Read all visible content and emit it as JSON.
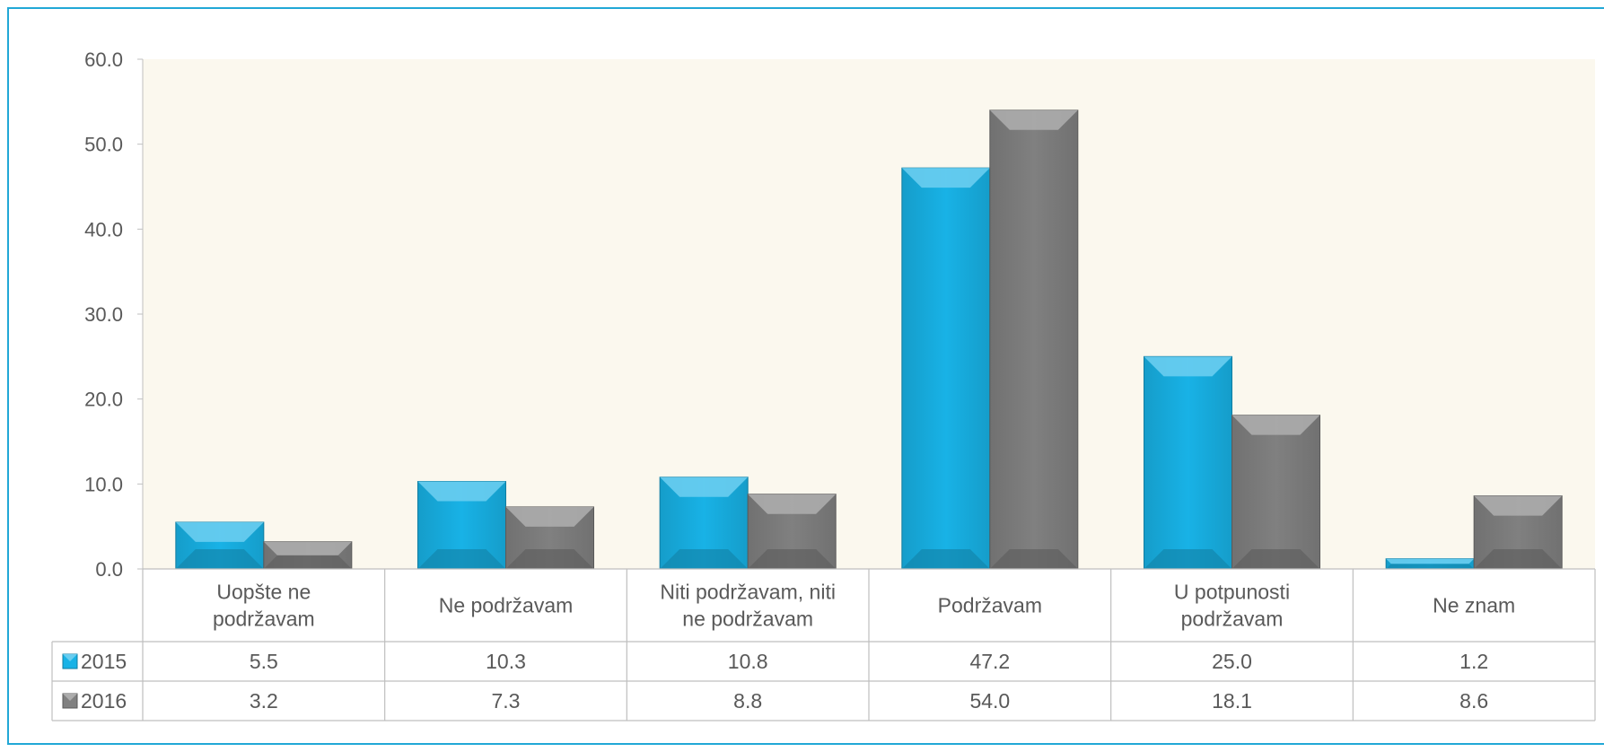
{
  "chart_data": {
    "type": "bar",
    "categories": [
      [
        "Uopšte ne",
        "podržavam"
      ],
      [
        "Ne podržavam"
      ],
      [
        "Niti podržavam, niti",
        "ne podržavam"
      ],
      [
        "Podržavam"
      ],
      [
        "U potpunosti",
        "podržavam"
      ],
      [
        "Ne znam"
      ]
    ],
    "series": [
      {
        "name": "2015",
        "values": [
          5.5,
          10.3,
          10.8,
          47.2,
          25.0,
          1.2
        ],
        "display": [
          "5.5",
          "10.3",
          "10.8",
          "47.2",
          "25.0",
          "1.2"
        ],
        "color": "#18b2e6"
      },
      {
        "name": "2016",
        "values": [
          3.2,
          7.3,
          8.8,
          54.0,
          18.1,
          8.6
        ],
        "display": [
          "3.2",
          "7.3",
          "8.8",
          "54.0",
          "18.1",
          "8.6"
        ],
        "color": "#808080"
      }
    ],
    "ylim": [
      0,
      60
    ],
    "yticks": [
      "0.0",
      "10.0",
      "20.0",
      "30.0",
      "40.0",
      "50.0",
      "60.0"
    ],
    "grid": false,
    "data_table": true,
    "plot_background": "#fbf8ee",
    "border_color": "#22a8d6"
  }
}
